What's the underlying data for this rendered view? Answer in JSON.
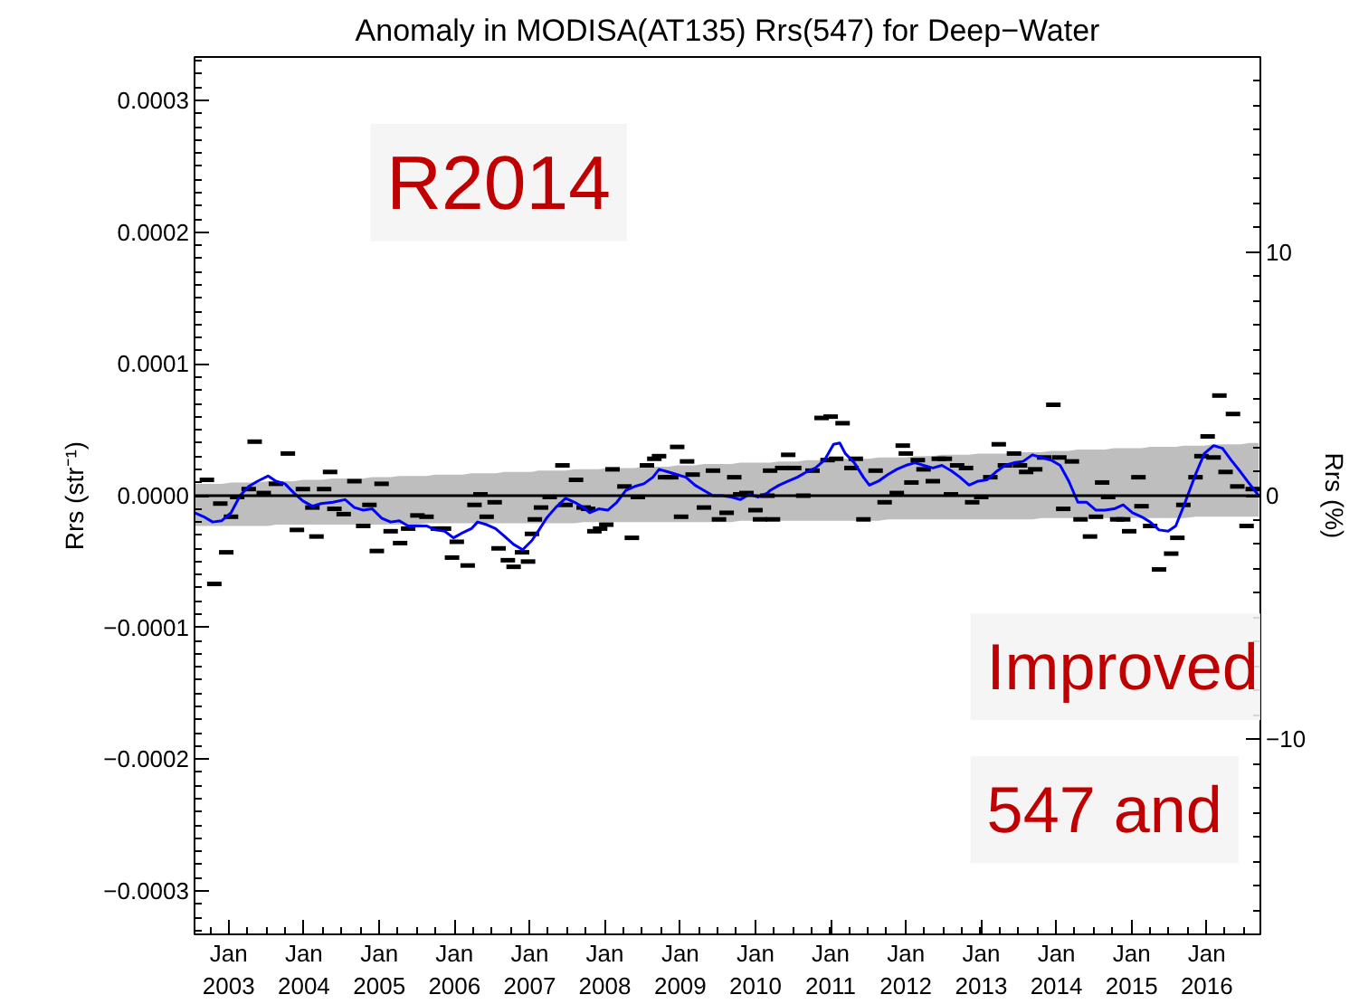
{
  "chart_data": {
    "type": "line",
    "title": "Anomaly in MODISA(AT135) Rrs(547) for Deep−Water",
    "ylabel": "Rrs (str⁻¹)",
    "y2label": "Rrs (%)",
    "annotations": [
      "R2014",
      "Improved",
      "547 and"
    ],
    "xlim": [
      "2002-07-19",
      "2016-09-17"
    ],
    "xticks": [
      {
        "value": "2003-01",
        "label": "Jan\n2003"
      },
      {
        "value": "2004-01",
        "label": "Jan\n2004"
      },
      {
        "value": "2005-01",
        "label": "Jan\n2005"
      },
      {
        "value": "2006-01",
        "label": "Jan\n2006"
      },
      {
        "value": "2007-01",
        "label": "Jan\n2007"
      },
      {
        "value": "2008-01",
        "label": "Jan\n2008"
      },
      {
        "value": "2009-01",
        "label": "Jan\n2009"
      },
      {
        "value": "2010-01",
        "label": "Jan\n2010"
      },
      {
        "value": "2011-01",
        "label": "Jan\n2011"
      },
      {
        "value": "2012-01",
        "label": "Jan\n2012"
      },
      {
        "value": "2013-01",
        "label": "Jan\n2013"
      },
      {
        "value": "2014-01",
        "label": "Jan\n2014"
      },
      {
        "value": "2015-01",
        "label": "Jan\n2015"
      },
      {
        "value": "2016-01",
        "label": "Jan\n2016"
      }
    ],
    "ylim": [
      -0.000333,
      0.000333
    ],
    "yticks": [
      {
        "value": -0.0003,
        "label": "−0.0003"
      },
      {
        "value": -0.0002,
        "label": "−0.0002"
      },
      {
        "value": -0.0001,
        "label": "−0.0001"
      },
      {
        "value": 0,
        "label": "0.0000"
      },
      {
        "value": 0.0001,
        "label": "0.0001"
      },
      {
        "value": 0.0002,
        "label": "0.0002"
      },
      {
        "value": 0.0003,
        "label": "0.0003"
      }
    ],
    "y2lim": [
      -18,
      18
    ],
    "y2ticks": [
      -10,
      0,
      10
    ],
    "ref_lines": [
      {
        "axis": "y",
        "value": 0,
        "color": "#000000"
      }
    ],
    "series": [
      {
        "type": "scatter",
        "color": "#000000",
        "x": [
          "2002-09-17",
          "2002-10-23",
          "2002-11-21",
          "2002-12-20",
          "2003-01-12",
          "2003-02-11",
          "2003-04-08",
          "2003-05-07",
          "2003-06-20",
          "2003-08-18",
          "2003-10-15",
          "2003-11-28",
          "2003-12-27",
          "2004-02-11",
          "2004-03-02",
          "2004-04-08",
          "2004-05-07",
          "2004-05-28",
          "2004-07-12",
          "2004-09-02",
          "2004-10-15",
          "2004-11-14",
          "2004-12-20",
          "2005-01-12",
          "2005-02-25",
          "2005-04-12",
          "2005-05-21",
          "2005-07-05",
          "2005-08-18",
          "2005-10-12",
          "2005-11-11",
          "2005-12-20",
          "2006-01-12",
          "2006-03-06",
          "2006-04-08",
          "2006-05-07",
          "2006-06-06",
          "2006-07-15",
          "2006-08-03",
          "2006-09-17",
          "2006-10-15",
          "2006-11-25",
          "2006-12-24",
          "2007-01-12",
          "2007-01-26",
          "2007-02-25",
          "2007-04-08",
          "2007-06-09",
          "2007-06-24",
          "2007-08-14",
          "2007-09-20",
          "2007-10-12",
          "2007-11-11",
          "2007-12-09",
          "2008-01-08",
          "2008-02-07",
          "2008-04-05",
          "2008-05-11",
          "2008-06-09",
          "2008-07-23",
          "2008-08-28",
          "2008-09-20",
          "2008-10-19",
          "2008-11-18",
          "2008-12-17",
          "2009-01-05",
          "2009-02-03",
          "2009-03-02",
          "2009-04-26",
          "2009-06-09",
          "2009-07-08",
          "2009-08-14",
          "2009-09-20",
          "2009-10-19",
          "2009-11-18",
          "2010-01-01",
          "2010-01-23",
          "2010-02-28",
          "2010-03-13",
          "2010-03-27",
          "2010-05-11",
          "2010-06-09",
          "2010-07-08",
          "2010-08-21",
          "2010-10-05",
          "2010-11-18",
          "2010-12-17",
          "2011-01-01",
          "2011-01-28",
          "2011-02-28",
          "2011-04-12",
          "2011-05-03",
          "2011-06-09",
          "2011-08-07",
          "2011-09-20",
          "2011-11-18",
          "2011-12-17",
          "2012-01-01",
          "2012-01-28",
          "2012-02-28",
          "2012-03-27",
          "2012-05-11",
          "2012-06-09",
          "2012-07-08",
          "2012-08-07",
          "2012-09-06",
          "2012-10-19",
          "2012-11-18",
          "2013-01-01",
          "2013-02-14",
          "2013-03-27",
          "2013-04-26",
          "2013-06-09",
          "2013-07-08",
          "2013-08-07",
          "2013-09-20",
          "2013-11-03",
          "2013-12-17",
          "2014-01-15",
          "2014-02-03",
          "2014-03-17",
          "2014-04-28",
          "2014-06-13",
          "2014-07-12",
          "2014-08-11",
          "2014-09-09",
          "2014-10-23",
          "2014-11-21",
          "2014-12-20",
          "2015-02-03",
          "2015-02-18",
          "2015-04-01",
          "2015-05-14",
          "2015-07-12",
          "2015-08-11",
          "2015-09-09",
          "2015-11-07",
          "2015-12-06",
          "2016-01-05",
          "2016-02-03",
          "2016-03-02",
          "2016-04-01",
          "2016-05-07",
          "2016-05-28",
          "2016-07-12",
          "2016-08-11"
        ],
        "values": [
          1.2e-05,
          -6.7e-05,
          -6e-06,
          -4.3e-05,
          -1.6e-05,
          -1e-06,
          5e-06,
          4.1e-05,
          2e-06,
          9e-06,
          3.2e-05,
          -2.6e-05,
          5e-06,
          -9e-06,
          -3.1e-05,
          5e-06,
          1.8e-05,
          -1e-05,
          -1.4e-05,
          1.1e-05,
          -2.3e-05,
          -7e-06,
          -4.2e-05,
          9e-06,
          -2.7e-05,
          -3.6e-05,
          -2.5e-05,
          -1.5e-05,
          -1.6e-05,
          -2.5e-05,
          -2.5e-05,
          -4.7e-05,
          -3.5e-05,
          -5.3e-05,
          -7e-06,
          1e-06,
          -1.6e-05,
          -5e-06,
          -4e-05,
          -4.9e-05,
          -5.4e-05,
          -4.3e-05,
          -5e-05,
          -2.9e-05,
          -1.8e-05,
          -9e-06,
          -1e-06,
          2.3e-05,
          -7e-06,
          1.2e-05,
          -9e-06,
          -1e-05,
          -2.7e-05,
          -2.5e-05,
          -2.2e-05,
          2e-05,
          7e-06,
          -3.2e-05,
          -1e-06,
          2.3e-05,
          2.8e-05,
          3e-05,
          1.4e-05,
          1.4e-05,
          3.7e-05,
          -1.6e-05,
          2.6e-05,
          1.6e-05,
          -9e-06,
          1.9e-05,
          -1.8e-05,
          -1.3e-05,
          1.4e-05,
          1e-06,
          2e-06,
          -1.1e-05,
          -1.8e-05,
          0,
          1.9e-05,
          -1.8e-05,
          2.1e-05,
          3.1e-05,
          2.1e-05,
          0,
          1.9e-05,
          5.9e-05,
          2.7e-05,
          6e-05,
          2.8e-05,
          5.5e-05,
          2.1e-05,
          2.8e-05,
          -1.8e-05,
          1.9e-05,
          -5e-06,
          2e-06,
          3.8e-05,
          3.2e-05,
          1e-05,
          2.7e-05,
          2e-05,
          1.1e-05,
          2.8e-05,
          2.8e-05,
          1e-06,
          2.3e-05,
          2.1e-05,
          -5e-06,
          -1e-06,
          1.4e-05,
          3.9e-05,
          2.3e-05,
          3.2e-05,
          2.3e-05,
          1.8e-05,
          2e-05,
          2.9e-05,
          6.9e-05,
          2.9e-05,
          -1e-05,
          2.6e-05,
          -1.8e-05,
          -3.1e-05,
          -1.6e-05,
          1e-05,
          -1e-06,
          -1.8e-05,
          -1.8e-05,
          -2.7e-05,
          1.4e-05,
          -8e-06,
          -2.3e-05,
          -5.6e-05,
          -4.4e-05,
          -3.2e-05,
          -7e-06,
          1.4e-05,
          3e-05,
          4.5e-05,
          2.9e-05,
          7.6e-05,
          1.8e-05,
          6.2e-05,
          7e-06,
          -2.3e-05,
          5e-06
        ]
      },
      {
        "type": "line",
        "color": "#0000ff",
        "x": [
          "2002-07-19",
          "2002-09-02",
          "2002-10-15",
          "2002-11-28",
          "2003-01-12",
          "2003-02-25",
          "2003-04-08",
          "2003-05-21",
          "2003-07-12",
          "2003-08-18",
          "2003-10-01",
          "2003-11-14",
          "2003-12-27",
          "2004-02-11",
          "2004-03-24",
          "2004-05-21",
          "2004-07-19",
          "2004-09-02",
          "2004-10-15",
          "2004-11-28",
          "2005-01-12",
          "2005-02-25",
          "2005-04-08",
          "2005-05-21",
          "2005-07-05",
          "2005-08-18",
          "2005-10-01",
          "2005-11-14",
          "2005-12-27",
          "2006-02-11",
          "2006-03-24",
          "2006-04-23",
          "2006-06-06",
          "2006-07-19",
          "2006-09-02",
          "2006-10-15",
          "2006-11-28",
          "2007-01-12",
          "2007-02-11",
          "2007-03-24",
          "2007-05-07",
          "2007-06-24",
          "2007-08-07",
          "2007-09-20",
          "2007-10-19",
          "2007-12-02",
          "2008-01-15",
          "2008-02-28",
          "2008-04-12",
          "2008-05-25",
          "2008-07-08",
          "2008-08-21",
          "2008-09-20",
          "2008-11-03",
          "2008-12-17",
          "2009-01-28",
          "2009-03-13",
          "2009-04-26",
          "2009-06-09",
          "2009-07-23",
          "2009-09-06",
          "2009-10-19",
          "2009-12-02",
          "2010-01-15",
          "2010-02-28",
          "2010-03-13",
          "2010-04-26",
          "2010-06-09",
          "2010-07-23",
          "2010-09-06",
          "2010-10-19",
          "2010-12-02",
          "2011-01-15",
          "2011-02-14",
          "2011-03-13",
          "2011-04-26",
          "2011-06-09",
          "2011-07-08",
          "2011-08-21",
          "2011-10-05",
          "2011-11-18",
          "2012-01-01",
          "2012-02-14",
          "2012-03-27",
          "2012-05-11",
          "2012-06-24",
          "2012-08-07",
          "2012-09-20",
          "2012-11-03",
          "2012-12-17",
          "2013-01-28",
          "2013-03-13",
          "2013-04-26",
          "2013-06-09",
          "2013-07-23",
          "2013-09-06",
          "2013-10-19",
          "2013-12-06",
          "2014-01-19",
          "2014-03-02",
          "2014-04-15",
          "2014-05-28",
          "2014-07-12",
          "2014-08-25",
          "2014-10-08",
          "2014-11-21",
          "2015-01-05",
          "2015-02-18",
          "2015-04-01",
          "2015-05-14",
          "2015-06-27",
          "2015-08-03",
          "2015-09-13",
          "2015-11-07",
          "2015-12-20",
          "2016-02-03",
          "2016-03-17",
          "2016-04-28",
          "2016-06-13",
          "2016-07-26",
          "2016-09-09"
        ],
        "values": [
          -1.3e-05,
          -1.6e-05,
          -2e-05,
          -1.9e-05,
          -1.3e-05,
          0,
          7e-06,
          1.1e-05,
          1.5e-05,
          1.1e-05,
          9e-06,
          2e-06,
          -4e-06,
          -8e-06,
          -6e-06,
          -5e-06,
          -3e-06,
          -9e-06,
          -1.1e-05,
          -1e-05,
          -1.7e-05,
          -2e-05,
          -1.9e-05,
          -2.3e-05,
          -2.3e-05,
          -2.3e-05,
          -2.6e-05,
          -2.7e-05,
          -3.2e-05,
          -2.8e-05,
          -2.5e-05,
          -2e-05,
          -2.2e-05,
          -2.5e-05,
          -3.1e-05,
          -3.7e-05,
          -4.1e-05,
          -3.4e-05,
          -2.7e-05,
          -1.7e-05,
          -9e-06,
          -2e-06,
          -5e-06,
          -9e-06,
          -1.3e-05,
          -1e-05,
          -1.1e-05,
          -5e-06,
          4e-06,
          7e-06,
          9e-06,
          1.4e-05,
          2e-05,
          1.8e-05,
          1.6e-05,
          1.4e-05,
          8e-06,
          4e-06,
          0,
          0,
          -1e-06,
          -3e-06,
          1e-06,
          -1e-06,
          2e-06,
          4e-06,
          8e-06,
          1.1e-05,
          1.4e-05,
          1.8e-05,
          2.1e-05,
          2.7e-05,
          3.9e-05,
          4e-05,
          3.2e-05,
          2.5e-05,
          1.4e-05,
          8e-06,
          1.1e-05,
          1.6e-05,
          2e-05,
          2.3e-05,
          2.5e-05,
          2.3e-05,
          2.1e-05,
          2.3e-05,
          1.9e-05,
          1.4e-05,
          8e-06,
          1.1e-05,
          1.2e-05,
          1.8e-05,
          2.3e-05,
          2.5e-05,
          2.6e-05,
          3.1e-05,
          2.9e-05,
          2.7e-05,
          2.3e-05,
          1.1e-05,
          -5e-06,
          -5e-06,
          -1.1e-05,
          -1.1e-05,
          -1e-05,
          -7e-06,
          -1.3e-05,
          -1.6e-05,
          -2e-05,
          -2.6e-05,
          -2.7e-05,
          -2.3e-05,
          -7e-06,
          1.6e-05,
          3.2e-05,
          3.8e-05,
          3.6e-05,
          2.7e-05,
          1.8e-05,
          9e-06,
          0
        ],
        "lower": [
          -2.3e-05,
          -2.3e-05,
          -2.3e-05,
          -2.3e-05,
          -2.3e-05,
          -2.3e-05,
          -2.3e-05,
          -2.3e-05,
          -2.3e-05,
          -2.2e-05,
          -2.2e-05,
          -2.2e-05,
          -2.2e-05,
          -2.2e-05,
          -2.2e-05,
          -2.2e-05,
          -2.2e-05,
          -2.2e-05,
          -2.2e-05,
          -2.2e-05,
          -2.2e-05,
          -2.2e-05,
          -2.2e-05,
          -2.2e-05,
          -2.2e-05,
          -2.1e-05,
          -2.1e-05,
          -2.1e-05,
          -2.1e-05,
          -2.1e-05,
          -2.1e-05,
          -2.1e-05,
          -2.1e-05,
          -2.1e-05,
          -2.1e-05,
          -2.1e-05,
          -2.1e-05,
          -2.1e-05,
          -2.1e-05,
          -2.1e-05,
          -2.1e-05,
          -2.1e-05,
          -2.1e-05,
          -2e-05,
          -2e-05,
          -2e-05,
          -2e-05,
          -2e-05,
          -2e-05,
          -2e-05,
          -2e-05,
          -2e-05,
          -2e-05,
          -2e-05,
          -2e-05,
          -2e-05,
          -2e-05,
          -2e-05,
          -2e-05,
          -2e-05,
          -2e-05,
          -1.9e-05,
          -1.9e-05,
          -1.9e-05,
          -1.9e-05,
          -1.9e-05,
          -1.9e-05,
          -1.9e-05,
          -1.9e-05,
          -1.9e-05,
          -1.9e-05,
          -1.9e-05,
          -1.9e-05,
          -1.9e-05,
          -1.9e-05,
          -1.9e-05,
          -1.9e-05,
          -1.9e-05,
          -1.9e-05,
          -1.8e-05,
          -1.8e-05,
          -1.8e-05,
          -1.8e-05,
          -1.8e-05,
          -1.8e-05,
          -1.8e-05,
          -1.8e-05,
          -1.8e-05,
          -1.8e-05,
          -1.8e-05,
          -1.8e-05,
          -1.8e-05,
          -1.8e-05,
          -1.8e-05,
          -1.8e-05,
          -1.8e-05,
          -1.7e-05,
          -1.7e-05,
          -1.7e-05,
          -1.7e-05,
          -1.7e-05,
          -1.7e-05,
          -1.7e-05,
          -1.7e-05,
          -1.7e-05,
          -1.7e-05,
          -1.7e-05,
          -1.7e-05,
          -1.7e-05,
          -1.7e-05,
          -1.7e-05,
          -1.7e-05,
          -1.7e-05,
          -1.6e-05,
          -1.6e-05,
          -1.6e-05,
          -1.6e-05,
          -1.6e-05,
          -1.6e-05,
          -1.6e-05,
          -1.6e-05
        ],
        "upper": [
          9e-06,
          9e-06,
          9e-06,
          9e-06,
          1e-05,
          1e-05,
          1e-05,
          1e-05,
          1.1e-05,
          1.1e-05,
          1.1e-05,
          1.1e-05,
          1.2e-05,
          1.2e-05,
          1.2e-05,
          1.3e-05,
          1.3e-05,
          1.3e-05,
          1.3e-05,
          1.4e-05,
          1.4e-05,
          1.4e-05,
          1.5e-05,
          1.5e-05,
          1.5e-05,
          1.5e-05,
          1.6e-05,
          1.6e-05,
          1.6e-05,
          1.6e-05,
          1.7e-05,
          1.7e-05,
          1.7e-05,
          1.7e-05,
          1.8e-05,
          1.8e-05,
          1.8e-05,
          1.8e-05,
          1.9e-05,
          1.9e-05,
          1.9e-05,
          1.9e-05,
          2e-05,
          2e-05,
          2e-05,
          2e-05,
          2.1e-05,
          2.1e-05,
          2.1e-05,
          2.1e-05,
          2.2e-05,
          2.2e-05,
          2.2e-05,
          2.2e-05,
          2.3e-05,
          2.3e-05,
          2.3e-05,
          2.4e-05,
          2.4e-05,
          2.4e-05,
          2.4e-05,
          2.5e-05,
          2.5e-05,
          2.5e-05,
          2.5e-05,
          2.5e-05,
          2.6e-05,
          2.6e-05,
          2.6e-05,
          2.7e-05,
          2.7e-05,
          2.7e-05,
          2.7e-05,
          2.8e-05,
          2.8e-05,
          2.8e-05,
          2.8e-05,
          2.8e-05,
          2.9e-05,
          2.9e-05,
          2.9e-05,
          2.9e-05,
          3e-05,
          3e-05,
          3e-05,
          3.1e-05,
          3.1e-05,
          3.1e-05,
          3.1e-05,
          3.2e-05,
          3.2e-05,
          3.2e-05,
          3.2e-05,
          3.3e-05,
          3.3e-05,
          3.3e-05,
          3.3e-05,
          3.4e-05,
          3.4e-05,
          3.4e-05,
          3.5e-05,
          3.5e-05,
          3.5e-05,
          3.5e-05,
          3.6e-05,
          3.6e-05,
          3.6e-05,
          3.6e-05,
          3.7e-05,
          3.7e-05,
          3.7e-05,
          3.7e-05,
          3.8e-05,
          3.8e-05,
          3.8e-05,
          3.9e-05,
          3.9e-05,
          3.9e-05,
          3.9e-05,
          4e-05,
          4e-05
        ]
      }
    ]
  }
}
